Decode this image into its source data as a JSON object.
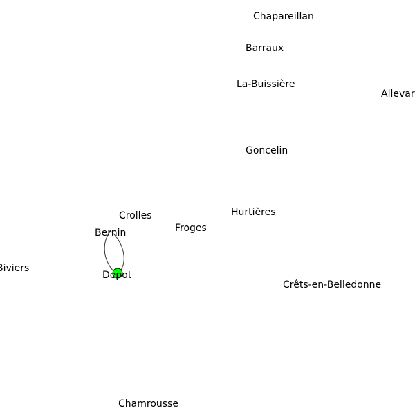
{
  "graph": {
    "depot_color": "#00ff00",
    "edge_color": "#333333",
    "locations": [
      {
        "id": "chapareillan",
        "label": "Chapareillan"
      },
      {
        "id": "barraux",
        "label": "Barraux"
      },
      {
        "id": "la-buissiere",
        "label": "La-Buissière"
      },
      {
        "id": "allevard",
        "label": "Allevar"
      },
      {
        "id": "goncelin",
        "label": "Goncelin"
      },
      {
        "id": "hurtieres",
        "label": "Hurtières"
      },
      {
        "id": "crolles",
        "label": "Crolles"
      },
      {
        "id": "froges",
        "label": "Froges"
      },
      {
        "id": "bernin",
        "label": "Bernin"
      },
      {
        "id": "biviers",
        "label": "Biviers"
      },
      {
        "id": "depot",
        "label": "Depot",
        "is_depot": true
      },
      {
        "id": "crets-en-belledonne",
        "label": "Crêts-en-Belledonne"
      },
      {
        "id": "chamrousse",
        "label": "Chamrousse"
      }
    ],
    "edges": [
      {
        "from": "depot",
        "to": "bernin"
      },
      {
        "from": "bernin",
        "to": "depot"
      }
    ]
  }
}
